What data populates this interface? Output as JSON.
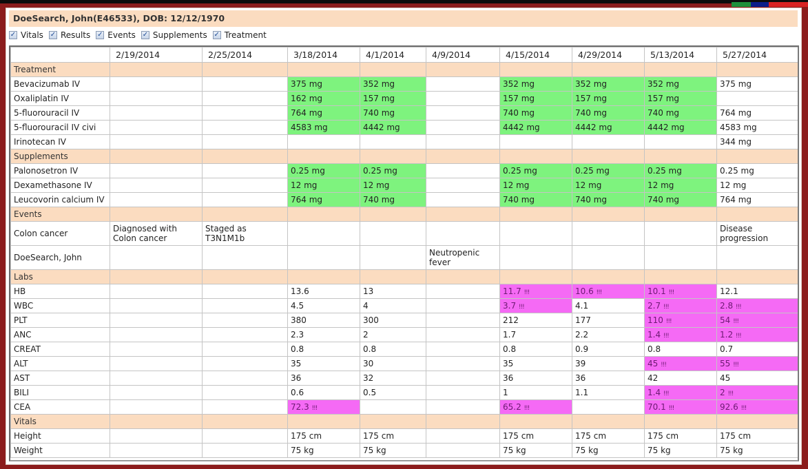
{
  "window": {
    "title": "DoeSearch, John(E46533), DOB: 12/12/1970",
    "color_tabs": [
      "#1e8f3a",
      "#0a1e8a",
      "#d82323"
    ]
  },
  "filters": [
    {
      "label": "Vitals",
      "checked": true
    },
    {
      "label": "Results",
      "checked": true
    },
    {
      "label": "Events",
      "checked": true
    },
    {
      "label": "Supplements",
      "checked": true
    },
    {
      "label": "Treatment",
      "checked": true
    }
  ],
  "colors": {
    "section_bg": "#fbdcc0",
    "administered_bg": "#7ef37e",
    "abnormal_bg": "#f56af5"
  },
  "grid": {
    "dates": [
      "2/19/2014",
      "2/25/2014",
      "3/18/2014",
      "4/1/2014",
      "4/9/2014",
      "4/15/2014",
      "4/29/2014",
      "5/13/2014",
      "5/27/2014"
    ],
    "sections": [
      {
        "title": "Treatment",
        "rows": [
          {
            "label": "Bevacizumab IV",
            "cells": [
              {
                "v": ""
              },
              {
                "v": ""
              },
              {
                "v": "375 mg",
                "s": "green"
              },
              {
                "v": "352 mg",
                "s": "green"
              },
              {
                "v": ""
              },
              {
                "v": "352 mg",
                "s": "green"
              },
              {
                "v": "352 mg",
                "s": "green"
              },
              {
                "v": "352 mg",
                "s": "green"
              },
              {
                "v": "375 mg"
              }
            ]
          },
          {
            "label": "Oxaliplatin IV",
            "cells": [
              {
                "v": ""
              },
              {
                "v": ""
              },
              {
                "v": "162 mg",
                "s": "green"
              },
              {
                "v": "157 mg",
                "s": "green"
              },
              {
                "v": ""
              },
              {
                "v": "157 mg",
                "s": "green"
              },
              {
                "v": "157 mg",
                "s": "green"
              },
              {
                "v": "157 mg",
                "s": "green"
              },
              {
                "v": ""
              }
            ]
          },
          {
            "label": "5-fluorouracil IV",
            "cells": [
              {
                "v": ""
              },
              {
                "v": ""
              },
              {
                "v": "764 mg",
                "s": "green"
              },
              {
                "v": "740 mg",
                "s": "green"
              },
              {
                "v": ""
              },
              {
                "v": "740 mg",
                "s": "green"
              },
              {
                "v": "740 mg",
                "s": "green"
              },
              {
                "v": "740 mg",
                "s": "green"
              },
              {
                "v": "764 mg"
              }
            ]
          },
          {
            "label": "5-fluorouracil IV civi",
            "cells": [
              {
                "v": ""
              },
              {
                "v": ""
              },
              {
                "v": "4583 mg",
                "s": "green"
              },
              {
                "v": "4442 mg",
                "s": "green"
              },
              {
                "v": ""
              },
              {
                "v": "4442 mg",
                "s": "green"
              },
              {
                "v": "4442 mg",
                "s": "green"
              },
              {
                "v": "4442 mg",
                "s": "green"
              },
              {
                "v": "4583 mg"
              }
            ]
          },
          {
            "label": "Irinotecan IV",
            "cells": [
              {
                "v": ""
              },
              {
                "v": ""
              },
              {
                "v": ""
              },
              {
                "v": ""
              },
              {
                "v": ""
              },
              {
                "v": ""
              },
              {
                "v": ""
              },
              {
                "v": ""
              },
              {
                "v": "344 mg"
              }
            ]
          }
        ]
      },
      {
        "title": "Supplements",
        "rows": [
          {
            "label": "Palonosetron IV",
            "cells": [
              {
                "v": ""
              },
              {
                "v": ""
              },
              {
                "v": "0.25 mg",
                "s": "green"
              },
              {
                "v": "0.25 mg",
                "s": "green"
              },
              {
                "v": ""
              },
              {
                "v": "0.25 mg",
                "s": "green"
              },
              {
                "v": "0.25 mg",
                "s": "green"
              },
              {
                "v": "0.25 mg",
                "s": "green"
              },
              {
                "v": "0.25 mg"
              }
            ]
          },
          {
            "label": "Dexamethasone IV",
            "cells": [
              {
                "v": ""
              },
              {
                "v": ""
              },
              {
                "v": "12 mg",
                "s": "green"
              },
              {
                "v": "12 mg",
                "s": "green"
              },
              {
                "v": ""
              },
              {
                "v": "12 mg",
                "s": "green"
              },
              {
                "v": "12 mg",
                "s": "green"
              },
              {
                "v": "12 mg",
                "s": "green"
              },
              {
                "v": "12 mg"
              }
            ]
          },
          {
            "label": "Leucovorin calcium IV",
            "cells": [
              {
                "v": ""
              },
              {
                "v": ""
              },
              {
                "v": "764 mg",
                "s": "green"
              },
              {
                "v": "740 mg",
                "s": "green"
              },
              {
                "v": ""
              },
              {
                "v": "740 mg",
                "s": "green"
              },
              {
                "v": "740 mg",
                "s": "green"
              },
              {
                "v": "740 mg",
                "s": "green"
              },
              {
                "v": "764 mg"
              }
            ]
          }
        ]
      },
      {
        "title": "Events",
        "rows": [
          {
            "label": "Colon cancer",
            "tall": true,
            "cells": [
              {
                "v": "Diagnosed with Colon cancer"
              },
              {
                "v": "Staged as T3N1M1b"
              },
              {
                "v": ""
              },
              {
                "v": ""
              },
              {
                "v": ""
              },
              {
                "v": ""
              },
              {
                "v": ""
              },
              {
                "v": ""
              },
              {
                "v": "Disease progression"
              }
            ]
          },
          {
            "label": "DoeSearch, John",
            "tall": true,
            "cells": [
              {
                "v": ""
              },
              {
                "v": ""
              },
              {
                "v": ""
              },
              {
                "v": ""
              },
              {
                "v": "Neutropenic fever"
              },
              {
                "v": ""
              },
              {
                "v": ""
              },
              {
                "v": ""
              },
              {
                "v": ""
              }
            ]
          }
        ]
      },
      {
        "title": "Labs",
        "rows": [
          {
            "label": "HB",
            "cells": [
              {
                "v": ""
              },
              {
                "v": ""
              },
              {
                "v": "13.6"
              },
              {
                "v": "13"
              },
              {
                "v": ""
              },
              {
                "v": "11.7",
                "s": "alert"
              },
              {
                "v": "10.6",
                "s": "alert"
              },
              {
                "v": "10.1",
                "s": "alert"
              },
              {
                "v": "12.1"
              }
            ]
          },
          {
            "label": "WBC",
            "cells": [
              {
                "v": ""
              },
              {
                "v": ""
              },
              {
                "v": "4.5"
              },
              {
                "v": "4"
              },
              {
                "v": ""
              },
              {
                "v": "3.7",
                "s": "alert"
              },
              {
                "v": "4.1"
              },
              {
                "v": "2.7",
                "s": "alert"
              },
              {
                "v": "2.8",
                "s": "alert"
              }
            ]
          },
          {
            "label": "PLT",
            "cells": [
              {
                "v": ""
              },
              {
                "v": ""
              },
              {
                "v": "380"
              },
              {
                "v": "300"
              },
              {
                "v": ""
              },
              {
                "v": "212"
              },
              {
                "v": "177"
              },
              {
                "v": "110",
                "s": "alert"
              },
              {
                "v": "54",
                "s": "alert"
              }
            ]
          },
          {
            "label": "ANC",
            "cells": [
              {
                "v": ""
              },
              {
                "v": ""
              },
              {
                "v": "2.3"
              },
              {
                "v": "2"
              },
              {
                "v": ""
              },
              {
                "v": "1.7"
              },
              {
                "v": "2.2"
              },
              {
                "v": "1.4",
                "s": "alert"
              },
              {
                "v": "1.2",
                "s": "alert"
              }
            ]
          },
          {
            "label": "CREAT",
            "cells": [
              {
                "v": ""
              },
              {
                "v": ""
              },
              {
                "v": "0.8"
              },
              {
                "v": "0.8"
              },
              {
                "v": ""
              },
              {
                "v": "0.8"
              },
              {
                "v": "0.9"
              },
              {
                "v": "0.8"
              },
              {
                "v": "0.7"
              }
            ]
          },
          {
            "label": "ALT",
            "cells": [
              {
                "v": ""
              },
              {
                "v": ""
              },
              {
                "v": "35"
              },
              {
                "v": "30"
              },
              {
                "v": ""
              },
              {
                "v": "35"
              },
              {
                "v": "39"
              },
              {
                "v": "45",
                "s": "alert"
              },
              {
                "v": "55",
                "s": "alert"
              }
            ]
          },
          {
            "label": "AST",
            "cells": [
              {
                "v": ""
              },
              {
                "v": ""
              },
              {
                "v": "36"
              },
              {
                "v": "32"
              },
              {
                "v": ""
              },
              {
                "v": "36"
              },
              {
                "v": "36"
              },
              {
                "v": "42"
              },
              {
                "v": "45"
              }
            ]
          },
          {
            "label": "BILI",
            "cells": [
              {
                "v": ""
              },
              {
                "v": ""
              },
              {
                "v": "0.6"
              },
              {
                "v": "0.5"
              },
              {
                "v": ""
              },
              {
                "v": "1"
              },
              {
                "v": "1.1"
              },
              {
                "v": "1.4",
                "s": "alert"
              },
              {
                "v": "2",
                "s": "alert"
              }
            ]
          },
          {
            "label": "CEA",
            "cells": [
              {
                "v": ""
              },
              {
                "v": ""
              },
              {
                "v": "72.3",
                "s": "alert"
              },
              {
                "v": ""
              },
              {
                "v": ""
              },
              {
                "v": "65.2",
                "s": "alert"
              },
              {
                "v": ""
              },
              {
                "v": "70.1",
                "s": "alert"
              },
              {
                "v": "92.6",
                "s": "alert"
              }
            ]
          }
        ]
      },
      {
        "title": "Vitals",
        "rows": [
          {
            "label": "Height",
            "cells": [
              {
                "v": ""
              },
              {
                "v": ""
              },
              {
                "v": "175 cm"
              },
              {
                "v": "175 cm"
              },
              {
                "v": ""
              },
              {
                "v": "175 cm"
              },
              {
                "v": "175 cm"
              },
              {
                "v": "175 cm"
              },
              {
                "v": "175 cm"
              }
            ]
          },
          {
            "label": "Weight",
            "cells": [
              {
                "v": ""
              },
              {
                "v": ""
              },
              {
                "v": "75 kg"
              },
              {
                "v": "75 kg"
              },
              {
                "v": ""
              },
              {
                "v": "75 kg"
              },
              {
                "v": "75 kg"
              },
              {
                "v": "75 kg"
              },
              {
                "v": "75 kg"
              }
            ]
          }
        ]
      }
    ],
    "alert_marker": "!!!",
    "check_glyph": "✓"
  }
}
